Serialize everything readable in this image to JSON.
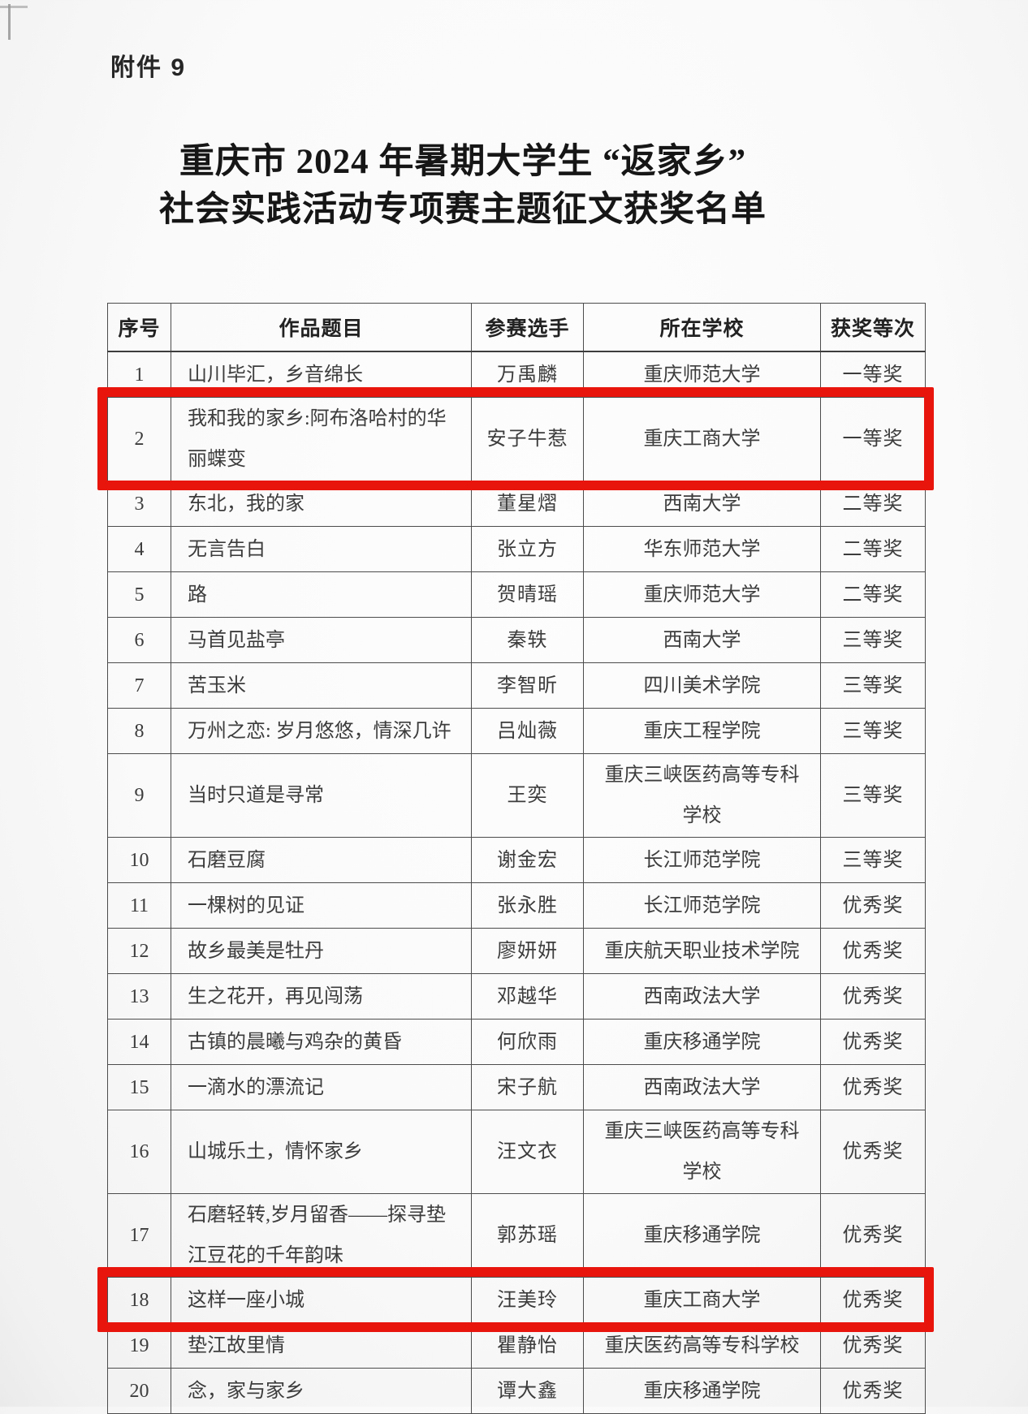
{
  "page": {
    "attachment_label": "附件 9",
    "title_line1": "重庆市 2024 年暑期大学生 “返家乡”",
    "title_line2": "社会实践活动专项赛主题征文获奖名单"
  },
  "colors": {
    "highlight_red": "#e8150d"
  },
  "table": {
    "headers": [
      "序号",
      "作品题目",
      "参赛选手",
      "所在学校",
      "获奖等次"
    ],
    "rows": [
      {
        "no": "1",
        "title": "山川毕汇，乡音绵长",
        "contestant": "万禹麟",
        "school": "重庆师范大学",
        "award": "一等奖",
        "highlighted": false
      },
      {
        "no": "2",
        "title": "我和我的家乡:阿布洛哈村的华丽蝶变",
        "contestant": "安子牛惹",
        "school": "重庆工商大学",
        "award": "一等奖",
        "highlighted": true
      },
      {
        "no": "3",
        "title": "东北，我的家",
        "contestant": "董星熠",
        "school": "西南大学",
        "award": "二等奖",
        "highlighted": false
      },
      {
        "no": "4",
        "title": "无言告白",
        "contestant": "张立方",
        "school": "华东师范大学",
        "award": "二等奖",
        "highlighted": false
      },
      {
        "no": "5",
        "title": "路",
        "contestant": "贺晴瑶",
        "school": "重庆师范大学",
        "award": "二等奖",
        "highlighted": false
      },
      {
        "no": "6",
        "title": "马首见盐亭",
        "contestant": "秦轶",
        "school": "西南大学",
        "award": "三等奖",
        "highlighted": false
      },
      {
        "no": "7",
        "title": "苦玉米",
        "contestant": "李智昕",
        "school": "四川美术学院",
        "award": "三等奖",
        "highlighted": false
      },
      {
        "no": "8",
        "title": "万州之恋: 岁月悠悠，情深几许",
        "contestant": "吕灿薇",
        "school": "重庆工程学院",
        "award": "三等奖",
        "highlighted": false
      },
      {
        "no": "9",
        "title": "当时只道是寻常",
        "contestant": "王奕",
        "school": "重庆三峡医药高等专科学校",
        "award": "三等奖",
        "highlighted": false
      },
      {
        "no": "10",
        "title": "石磨豆腐",
        "contestant": "谢金宏",
        "school": "长江师范学院",
        "award": "三等奖",
        "highlighted": false
      },
      {
        "no": "11",
        "title": "一棵树的见证",
        "contestant": "张永胜",
        "school": "长江师范学院",
        "award": "优秀奖",
        "highlighted": false
      },
      {
        "no": "12",
        "title": "故乡最美是牡丹",
        "contestant": "廖妍妍",
        "school": "重庆航天职业技术学院",
        "award": "优秀奖",
        "highlighted": false
      },
      {
        "no": "13",
        "title": "生之花开，再见闯荡",
        "contestant": "邓越华",
        "school": "西南政法大学",
        "award": "优秀奖",
        "highlighted": false
      },
      {
        "no": "14",
        "title": "古镇的晨曦与鸡杂的黄昏",
        "contestant": "何欣雨",
        "school": "重庆移通学院",
        "award": "优秀奖",
        "highlighted": false
      },
      {
        "no": "15",
        "title": "一滴水的漂流记",
        "contestant": "宋子航",
        "school": "西南政法大学",
        "award": "优秀奖",
        "highlighted": false
      },
      {
        "no": "16",
        "title": "山城乐土，情怀家乡",
        "contestant": "汪文衣",
        "school": "重庆三峡医药高等专科学校",
        "award": "优秀奖",
        "highlighted": false
      },
      {
        "no": "17",
        "title": "石磨轻转,岁月留香——探寻垫江豆花的千年韵味",
        "contestant": "郭苏瑶",
        "school": "重庆移通学院",
        "award": "优秀奖",
        "highlighted": false
      },
      {
        "no": "18",
        "title": "这样一座小城",
        "contestant": "汪美玲",
        "school": "重庆工商大学",
        "award": "优秀奖",
        "highlighted": true
      },
      {
        "no": "19",
        "title": "垫江故里情",
        "contestant": "瞿静怡",
        "school": "重庆医药高等专科学校",
        "award": "优秀奖",
        "highlighted": false
      },
      {
        "no": "20",
        "title": "念，家与家乡",
        "contestant": "谭大鑫",
        "school": "重庆移通学院",
        "award": "优秀奖",
        "highlighted": false
      }
    ]
  }
}
